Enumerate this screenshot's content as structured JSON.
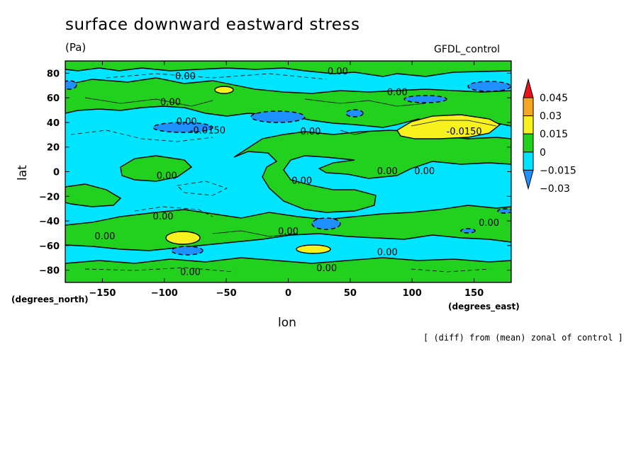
{
  "header": {
    "title": "surface downward eastward stress",
    "units": "(Pa)",
    "source": "GFDL_control",
    "note": "[ (diff) from (mean) zonal of control ]"
  },
  "chart_data": {
    "type": "heatmap",
    "title": "surface downward eastward stress",
    "xlabel": "lon",
    "ylabel": "lat",
    "xunits": "(degrees_east)",
    "yunits": "(degrees_north)",
    "xlim": [
      -180,
      180
    ],
    "ylim": [
      -90,
      90
    ],
    "xticks": [
      -150,
      -100,
      -50,
      0,
      50,
      100,
      150
    ],
    "yticks": [
      80,
      60,
      40,
      20,
      0,
      -20,
      -40,
      -60,
      -80
    ],
    "colorbar": {
      "levels": [
        "0.045",
        "0.03",
        "0.015",
        "0",
        "−0.015",
        "−0.03"
      ],
      "colors": [
        "#e8141c",
        "#f5a623",
        "#f7f21e",
        "#22d11e",
        "#00e5ff",
        "#1e90ff"
      ]
    },
    "contour_labels": [
      {
        "text": "0.00",
        "lon": -83,
        "lat": 78
      },
      {
        "text": "0.00",
        "lon": 40,
        "lat": 82
      },
      {
        "text": "0.00",
        "lon": 88,
        "lat": 65
      },
      {
        "text": "0.00",
        "lon": -95,
        "lat": 57
      },
      {
        "text": "0.00",
        "lon": -82,
        "lat": 41
      },
      {
        "text": "-0.0150",
        "lon": -65,
        "lat": 34
      },
      {
        "text": "0.00",
        "lon": 18,
        "lat": 33
      },
      {
        "text": "-0.0150",
        "lon": 142,
        "lat": 33
      },
      {
        "text": "0.00",
        "lon": -98,
        "lat": -3
      },
      {
        "text": "0.00",
        "lon": 11,
        "lat": -7
      },
      {
        "text": "0.00",
        "lon": 80,
        "lat": 1
      },
      {
        "text": "0.00",
        "lon": 110,
        "lat": 1
      },
      {
        "text": "0.00",
        "lon": -101,
        "lat": -36
      },
      {
        "text": "0.00",
        "lon": -148,
        "lat": -52
      },
      {
        "text": "0.00",
        "lon": 0,
        "lat": -48
      },
      {
        "text": "0.00",
        "lon": 162,
        "lat": -41
      },
      {
        "text": "0.00",
        "lon": 80,
        "lat": -65
      },
      {
        "text": "0.00",
        "lon": 31,
        "lat": -78
      },
      {
        "text": "0.00",
        "lon": -79,
        "lat": -81
      }
    ]
  }
}
